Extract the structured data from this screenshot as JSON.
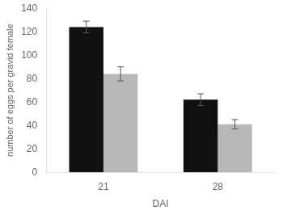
{
  "chart_data": {
    "type": "bar",
    "categories": [
      "21",
      "28"
    ],
    "series": [
      {
        "color": "#111111",
        "values": [
          124,
          62
        ],
        "errors": [
          5,
          5
        ]
      },
      {
        "color": "#b8b8b8",
        "values": [
          84,
          41
        ],
        "errors": [
          6,
          4
        ]
      }
    ],
    "xlabel": "DAI",
    "ylabel": "number of eggs per gravid female",
    "ylim": [
      0,
      140
    ],
    "yticks": [
      0,
      20,
      40,
      60,
      80,
      100,
      120,
      140
    ],
    "grid": false
  }
}
